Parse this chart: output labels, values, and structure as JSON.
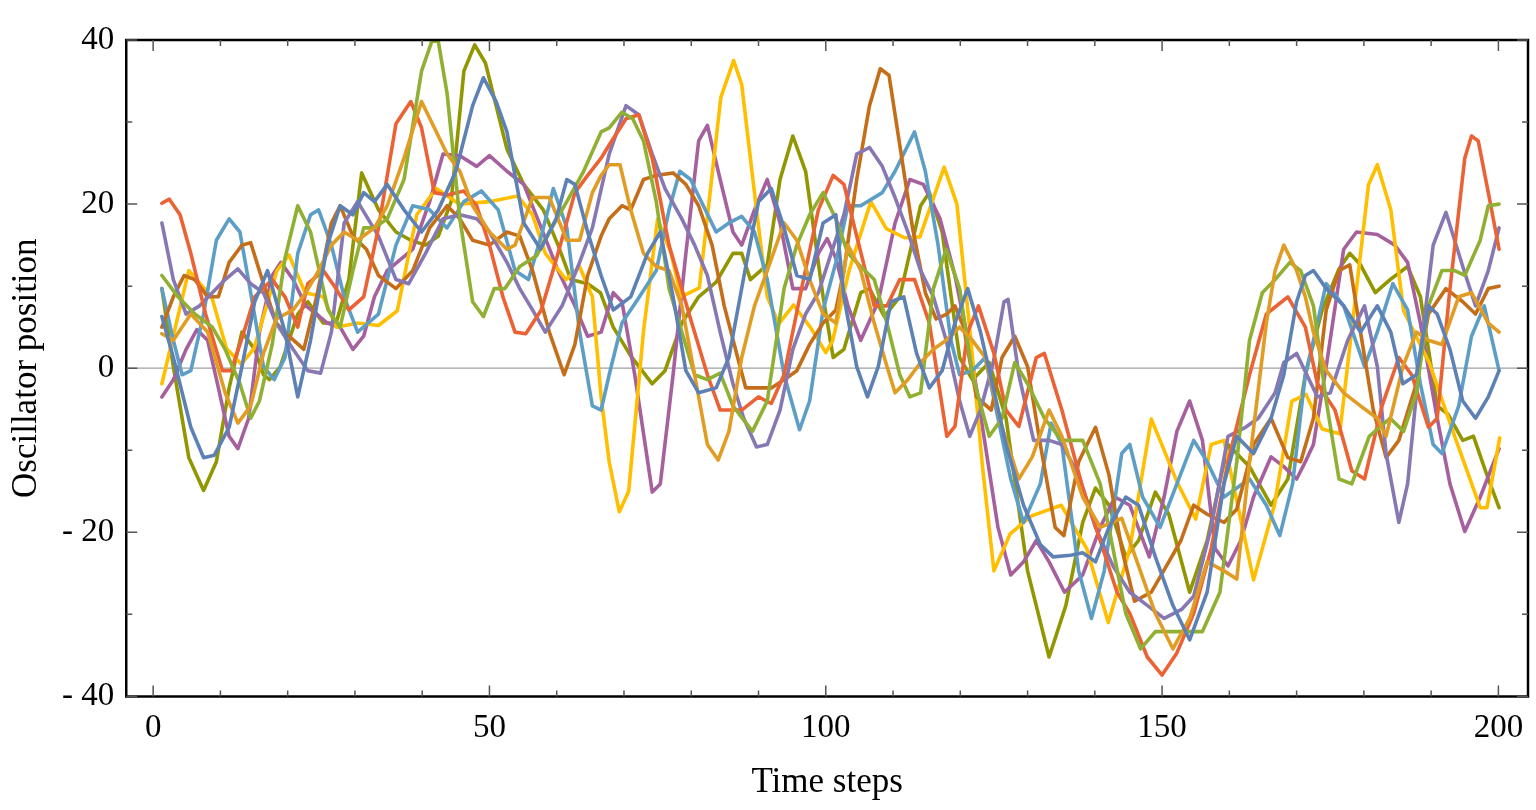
{
  "chart_data": {
    "type": "line",
    "xlabel": "Time steps",
    "ylabel": "Oscillator position",
    "xlim": [
      -4,
      204.4
    ],
    "ylim": [
      -40,
      40
    ],
    "xticks": [
      0,
      {
        "value": 10,
        "label": null
      },
      {
        "value": 20,
        "label": null
      },
      {
        "value": 30,
        "label": null
      },
      {
        "value": 40,
        "label": null
      },
      50,
      {
        "value": 60,
        "label": null
      },
      {
        "value": 70,
        "label": null
      },
      {
        "value": 80,
        "label": null
      },
      {
        "value": 90,
        "label": null
      },
      100,
      {
        "value": 110,
        "label": null
      },
      {
        "value": 120,
        "label": null
      },
      {
        "value": 130,
        "label": null
      },
      {
        "value": 140,
        "label": null
      },
      150,
      {
        "value": 160,
        "label": null
      },
      {
        "value": 170,
        "label": null
      },
      {
        "value": 180,
        "label": null
      },
      {
        "value": 190,
        "label": null
      },
      200
    ],
    "yticks": [
      {
        "value": -40,
        "label": "- 40"
      },
      {
        "value": -30,
        "label": null
      },
      {
        "value": -20,
        "label": "- 20"
      },
      {
        "value": -10,
        "label": null
      },
      0,
      {
        "value": 10,
        "label": null
      },
      20,
      {
        "value": 30,
        "label": null
      },
      40
    ],
    "grid": false,
    "marker": "none",
    "line_style": "solid",
    "ref_lines": [
      {
        "axis": "y",
        "value": 0,
        "color": "#a0a0a0"
      }
    ],
    "series": [
      {
        "color": "#5e81b5",
        "x": [
          1.3,
          3,
          5.6,
          7.5,
          9.1,
          11.3,
          13.2,
          15.1,
          17,
          19.6,
          21.5,
          23.4,
          25.9,
          27.8,
          29.7,
          31.3,
          32.9,
          34.8,
          37.3,
          39.9,
          42.4,
          45,
          47.5,
          49.1,
          51,
          52.6,
          55.1,
          57.6,
          59.9,
          61.5,
          62.7,
          64.6,
          66.6,
          68.4,
          71,
          73.5,
          75.4,
          77.3,
          79.2,
          81.1,
          83.7,
          85.6,
          88.1,
          90,
          91.9,
          93.8,
          95.7,
          97.6,
          99.6,
          101.5,
          102.7,
          104.6,
          106.2,
          107.8,
          109.7,
          111.6,
          113.5,
          115.4,
          117.3,
          119.2,
          121.1,
          123,
          124.9,
          126.8,
          129.4,
          131.9,
          133.8,
          136.4,
          138.2,
          140.1,
          142.1,
          144.6,
          146.5,
          149,
          151.6,
          154.1,
          156.7,
          159.2,
          161.1,
          163.6,
          166.2,
          168.1,
          170,
          171.3,
          172.5,
          174.4,
          177,
          179.5,
          182,
          184,
          185.8,
          187.8,
          189.6,
          190.9,
          192.8,
          194.7,
          196.6,
          198.5,
          200.1
        ],
        "values": [
          6.3,
          1.3,
          -7.2,
          -10.9,
          -10.6,
          -7.2,
          0.2,
          8.1,
          11.9,
          4.4,
          -3.5,
          3.4,
          15,
          19.8,
          18.7,
          21.4,
          20.3,
          22.4,
          19.3,
          16.6,
          19.3,
          24,
          32,
          35.4,
          32.5,
          28.8,
          17.7,
          14.5,
          18.2,
          23,
          22.4,
          16.6,
          11.3,
          7.1,
          8.7,
          14,
          16.6,
          8.7,
          -0.3,
          -3,
          -2.4,
          1.3,
          12.4,
          20.3,
          21.9,
          17.1,
          11.3,
          10.8,
          17.7,
          18.7,
          8.7,
          0.2,
          -3.5,
          0.2,
          8.1,
          8.7,
          1.8,
          -2.4,
          -0.3,
          5.5,
          9.7,
          4.4,
          -2.4,
          -9.3,
          -16.7,
          -21.5,
          -23,
          -22.8,
          -22.5,
          -23.6,
          -19.4,
          -15.7,
          -16.7,
          -23,
          -28.9,
          -33.1,
          -27.3,
          -14.1,
          -8.3,
          -10.4,
          -6.1,
          -0.8,
          8.1,
          11.3,
          11.9,
          9.7,
          7.6,
          4.4,
          7.6,
          4.4,
          -1.9,
          -0.8,
          7.6,
          6.6,
          2.3,
          -4,
          -6.1,
          -3.5,
          -0.3
        ]
      },
      {
        "color": "#e19c24",
        "x": [
          1.3,
          3,
          5.6,
          8.1,
          10.7,
          12.6,
          14.5,
          16.4,
          18.3,
          20.8,
          22.7,
          24.6,
          26.5,
          28.4,
          30.4,
          32.9,
          34.8,
          37.3,
          39.9,
          41.8,
          43.7,
          45.6,
          47.5,
          50,
          52.6,
          53.8,
          56.4,
          58.9,
          61.5,
          63.4,
          65.3,
          66.6,
          67.8,
          69.4,
          71,
          72.9,
          74.8,
          76.7,
          78.6,
          80.5,
          82.4,
          84,
          85.6,
          87.5,
          89.4,
          91.3,
          93.8,
          95.7,
          97.6,
          99.6,
          101.5,
          103.3,
          105.2,
          107.2,
          109.1,
          110.3,
          112.2,
          114.1,
          116,
          117.9,
          119.9,
          121.8,
          123.7,
          126.2,
          128.7,
          130.7,
          133.2,
          135.1,
          138.2,
          140.8,
          144,
          146.5,
          149,
          151.6,
          154.1,
          156.7,
          159.2,
          161.1,
          163,
          165.5,
          166.8,
          168.1,
          170,
          171.3,
          172.5,
          174.4,
          177,
          179.5,
          182,
          183.3,
          185.8,
          187.8,
          189.6,
          191.6,
          194.1,
          196,
          198.5,
          200.1
        ],
        "values": [
          4.2,
          3.4,
          6.6,
          4.4,
          -3,
          -6.7,
          -4.6,
          1.8,
          6,
          7.1,
          9.2,
          11.9,
          15,
          16.6,
          15.6,
          17.1,
          19.8,
          25.6,
          32.5,
          29.3,
          26.1,
          24,
          19.8,
          16.6,
          14.5,
          15,
          20.8,
          20.8,
          15.6,
          15.6,
          21.4,
          23.5,
          24.8,
          24.8,
          19.3,
          14,
          12.4,
          11.9,
          7.6,
          -0.8,
          -9.3,
          -11.2,
          -7.7,
          1.3,
          7.6,
          11.9,
          17.7,
          15.6,
          10.8,
          6.6,
          5.5,
          15,
          11.9,
          5.5,
          0.2,
          -3,
          -1.4,
          0.7,
          2.3,
          3.4,
          5,
          3.4,
          1.3,
          -7.2,
          -13.5,
          -10.8,
          -5.1,
          -8.3,
          -15.7,
          -19.4,
          -18.3,
          -24.1,
          -29.9,
          -34.2,
          -30.5,
          -23.6,
          -24.7,
          -25.7,
          -11.4,
          5.5,
          11.9,
          15,
          11.9,
          8.7,
          4.4,
          -0.3,
          -3,
          -4.6,
          -6.1,
          -8.3,
          0.2,
          4.4,
          3.4,
          2.9,
          8.7,
          9.2,
          5.5,
          4.4
        ]
      },
      {
        "color": "#8fb032",
        "x": [
          1.3,
          3.7,
          6.2,
          8.8,
          10.7,
          12.9,
          14.5,
          15.8,
          17.7,
          19.6,
          21.5,
          23.4,
          26,
          27.8,
          29.7,
          31.3,
          32.9,
          34.8,
          37.3,
          39.9,
          41.5,
          42.4,
          43.7,
          45.6,
          47.5,
          49.1,
          50.7,
          52.3,
          54.5,
          57,
          58.9,
          61.5,
          64,
          66.6,
          67.8,
          69.7,
          71.3,
          72.9,
          74.8,
          76.7,
          78.6,
          80.5,
          82.4,
          84.3,
          86.2,
          89.1,
          91.3,
          93.8,
          95.7,
          97.6,
          99.6,
          101.5,
          103.3,
          105.2,
          107.2,
          109.1,
          111,
          112.5,
          114.1,
          116,
          117.9,
          119.9,
          121.8,
          124.3,
          126.2,
          128.1,
          130,
          132.5,
          135.1,
          138.2,
          140.8,
          142.7,
          144.6,
          146.8,
          149,
          152.2,
          156,
          158.6,
          161.1,
          163,
          164.9,
          166.8,
          169,
          170.6,
          172.5,
          174.4,
          176.3,
          178.2,
          180.8,
          183.9,
          185.9,
          187.8,
          189.6,
          191.6,
          193.5,
          195,
          197.3,
          198.5,
          200.1
        ],
        "values": [
          11.3,
          8.7,
          6.6,
          5,
          2.3,
          -1.9,
          -6.1,
          -4,
          2.9,
          13.4,
          19.8,
          16.6,
          7.1,
          5,
          11.9,
          17.1,
          17.1,
          18.2,
          23,
          36.2,
          40,
          39.8,
          33.5,
          18.2,
          8.1,
          6.3,
          9.7,
          9.7,
          12.4,
          13.7,
          16.6,
          20.3,
          24,
          28.8,
          29.3,
          31.2,
          30.4,
          27.7,
          20.3,
          9.7,
          4.4,
          -0.8,
          -1.4,
          -0.6,
          -4.6,
          -7.7,
          -4,
          9.7,
          15,
          18.7,
          21.4,
          18.2,
          14,
          12.4,
          10.8,
          5.5,
          -0.8,
          -3.5,
          -3,
          9.7,
          14.5,
          9.7,
          -0.8,
          -8.3,
          -6.1,
          0.7,
          -1.9,
          -6.1,
          -8.8,
          -8.8,
          -14.1,
          -22,
          -29.9,
          -34.2,
          -32.1,
          -32.1,
          -32.1,
          -27.3,
          -11.4,
          3.4,
          9.2,
          10.8,
          12.9,
          11.9,
          7.6,
          -4,
          -13.5,
          -14.1,
          -8.3,
          -6.1,
          -7.7,
          -3,
          7.6,
          11.9,
          11.9,
          11.3,
          15.6,
          19.8,
          20
        ]
      },
      {
        "color": "#eb6235",
        "x": [
          1.3,
          2.4,
          4,
          5.6,
          7.8,
          10.3,
          11.6,
          13.5,
          15.1,
          17.7,
          19.6,
          21.5,
          23,
          25.3,
          27.2,
          29.1,
          31.3,
          33.5,
          36.1,
          38.3,
          39.9,
          41.8,
          43.7,
          46.2,
          48.1,
          50,
          52,
          53.8,
          55.4,
          57.7,
          60.2,
          62.7,
          64.6,
          66.6,
          67.8,
          70.3,
          72.2,
          74.2,
          76.7,
          79.9,
          82.4,
          84.3,
          87.5,
          90,
          91.9,
          93.8,
          96.4,
          98.9,
          101.1,
          102.7,
          104.6,
          107.2,
          109.1,
          111,
          113.2,
          115.4,
          118,
          119.2,
          121.1,
          122.7,
          125,
          126.8,
          128.7,
          131.3,
          132.5,
          135.1,
          138.2,
          140.8,
          143.3,
          145.2,
          147.8,
          150,
          152.2,
          154.7,
          157.3,
          159.8,
          163,
          165.5,
          168.7,
          171.3,
          173.1,
          175.7,
          178.2,
          180.1,
          182.7,
          185.2,
          187.1,
          189.6,
          190.9,
          192.8,
          195,
          196,
          197,
          198.5,
          200.1
        ],
        "values": [
          20.1,
          20.6,
          18.7,
          14,
          6.6,
          -0.3,
          -0.3,
          4.4,
          8.7,
          10.8,
          8.7,
          5,
          10.3,
          11.9,
          9.7,
          7.1,
          8.7,
          17.1,
          29.8,
          32.5,
          29.3,
          21.4,
          21.1,
          21.6,
          19.8,
          15,
          8.7,
          4.4,
          4.2,
          7.1,
          14,
          21.4,
          23.5,
          25.6,
          27.2,
          30.4,
          30.9,
          25.6,
          15,
          6,
          -0.8,
          -5.1,
          -5.1,
          -3.5,
          -4.3,
          -0.8,
          9.7,
          19.3,
          23.5,
          22.4,
          16.1,
          7.6,
          7.6,
          10.8,
          10.8,
          5.5,
          -8.3,
          -7.1,
          4.4,
          7.6,
          1.8,
          -5.1,
          -7.1,
          1.3,
          1.8,
          -5.1,
          -14.6,
          -21,
          -27.3,
          -29.9,
          -35.2,
          -37.4,
          -34.7,
          -29.9,
          -22,
          -11.4,
          -0.8,
          6.6,
          8.7,
          5,
          -1.9,
          -5.1,
          -12.5,
          -13.5,
          -4.6,
          1.3,
          -0.8,
          -7.2,
          -6.1,
          9.7,
          25.6,
          28.3,
          27.7,
          21.4,
          14.5
        ]
      },
      {
        "color": "#8778b3",
        "x": [
          1.3,
          3,
          4.9,
          6.9,
          8.8,
          10.7,
          12.6,
          14.5,
          16.4,
          18.3,
          20.8,
          23,
          24.9,
          26.5,
          28.4,
          30.4,
          33.5,
          36.1,
          38,
          40.5,
          43.1,
          45.6,
          48.1,
          50,
          52.6,
          54.5,
          56.4,
          58.3,
          60.8,
          63.4,
          65.3,
          67.8,
          70.3,
          72.2,
          74.2,
          76.1,
          78.6,
          80.5,
          82.4,
          84.3,
          86.2,
          87.8,
          89.7,
          91.3,
          93.2,
          95.1,
          97,
          98.9,
          100.8,
          102.7,
          104.6,
          106.5,
          108.4,
          110.3,
          112.2,
          114.1,
          116,
          117.9,
          119.9,
          121.4,
          123,
          124.9,
          126.5,
          127.1,
          128.7,
          130.9,
          133.2,
          135.1,
          137.6,
          140.1,
          142.7,
          145.2,
          147.8,
          150.3,
          152.9,
          154.7,
          157.3,
          159.8,
          162.4,
          164.3,
          166.8,
          168.1,
          170,
          173.1,
          175,
          177.6,
          180.1,
          182,
          183.3,
          185.2,
          186.5,
          188.4,
          190.3,
          192.2,
          194.7,
          196.6,
          198.5,
          200.1
        ],
        "values": [
          17.7,
          10.8,
          6.6,
          7.6,
          9.2,
          10.8,
          12.1,
          10.3,
          9.2,
          5.5,
          2.3,
          -0.3,
          -0.6,
          4.4,
          17.7,
          20.3,
          16.1,
          10.8,
          10.3,
          14,
          18.2,
          18.7,
          18.2,
          16.6,
          12.9,
          9.7,
          7.1,
          4.4,
          7.6,
          12.9,
          17.1,
          26.1,
          32,
          30.9,
          26.1,
          21.9,
          18.2,
          15,
          11.3,
          4.4,
          -1.9,
          -6.1,
          -9.6,
          -9.3,
          -5.1,
          2.3,
          6.6,
          9.2,
          14,
          18.7,
          26.1,
          26.9,
          24.6,
          20.8,
          16.6,
          11.9,
          8.7,
          3.4,
          -4,
          -8.3,
          -5.1,
          0.7,
          8.1,
          8.4,
          -0.8,
          -8.8,
          -8.8,
          -9.3,
          -13,
          -19.4,
          -24.1,
          -27.3,
          -28.9,
          -30.5,
          -29.4,
          -27.8,
          -19.4,
          -8.3,
          -7.2,
          -6.1,
          -3,
          0.7,
          1.8,
          -3.5,
          -3,
          3.4,
          7.6,
          0.2,
          -10.4,
          -18.8,
          -14.1,
          1.8,
          15,
          19,
          12.4,
          7.6,
          11.9,
          17.1
        ]
      },
      {
        "color": "#c56e1a",
        "x": [
          1.3,
          3,
          4.6,
          6.2,
          8.1,
          9.7,
          11.3,
          13.2,
          14.5,
          16.4,
          18.3,
          20.2,
          22.4,
          24.3,
          26.5,
          27.8,
          29.7,
          31.7,
          33.5,
          36.1,
          38.6,
          41.1,
          43.7,
          45.6,
          47.5,
          50,
          52.6,
          54.5,
          56.4,
          58.9,
          61.1,
          62.7,
          64.6,
          66.6,
          67.8,
          69.7,
          71,
          72.9,
          74.8,
          77.3,
          79.2,
          81.1,
          83.1,
          84.9,
          86.9,
          88.1,
          90,
          91.9,
          93.8,
          95.7,
          97.6,
          99.6,
          101.5,
          102.7,
          104.6,
          106.5,
          108.1,
          109.4,
          111,
          112.9,
          114.8,
          116.4,
          118,
          119.2,
          120.5,
          122.4,
          124.6,
          126.2,
          128.1,
          130,
          131.9,
          134.1,
          135.4,
          137.6,
          140.1,
          142.1,
          144,
          145.9,
          148.4,
          151,
          152.8,
          154.7,
          156.7,
          159.2,
          161.1,
          163.6,
          166.2,
          168.7,
          170.6,
          172.5,
          174.4,
          176.3,
          177.9,
          179.5,
          181.4,
          183.3,
          185.2,
          187.8,
          189.6,
          192.2,
          194.7,
          196.6,
          198.5,
          200.1
        ],
        "values": [
          5,
          8.7,
          11.3,
          10.8,
          8.7,
          8.7,
          12.9,
          15,
          15.3,
          10.3,
          5.5,
          3.9,
          2.3,
          8.7,
          17.7,
          19.8,
          16.1,
          14.5,
          11.3,
          9.7,
          11.9,
          17.1,
          19.8,
          18.2,
          15.6,
          15,
          16.6,
          16.1,
          11.9,
          4.4,
          -0.8,
          2.9,
          11.3,
          16.1,
          18.2,
          19.8,
          19.3,
          23,
          23.5,
          23.8,
          22.4,
          19.8,
          15,
          7.6,
          1.3,
          -2.4,
          -2.4,
          -2.4,
          -1.4,
          -0.3,
          2.9,
          5.5,
          7.1,
          11.9,
          23,
          32,
          36.5,
          35.7,
          27.2,
          17.1,
          9.2,
          6,
          6.6,
          7.6,
          5,
          -3.5,
          -5.1,
          1.3,
          3.9,
          0.2,
          -9.3,
          -19.4,
          -20.4,
          -11.4,
          -7.2,
          -13,
          -22,
          -28.4,
          -27.3,
          -23.6,
          -21,
          -16.7,
          -17.8,
          -18.8,
          -17.2,
          -9.3,
          -6.1,
          -10.9,
          -11.4,
          -6.1,
          7.1,
          11.9,
          12.6,
          4.4,
          -5.1,
          -10.9,
          -8.8,
          -1.9,
          6.6,
          9.7,
          8.1,
          6.6,
          9.7,
          10
        ]
      },
      {
        "color": "#5d9ec7",
        "x": [
          1.3,
          3,
          4.3,
          5.6,
          7.5,
          9.4,
          11.3,
          12.9,
          14.5,
          16.4,
          18,
          19.6,
          21.5,
          23.4,
          24.6,
          26.5,
          28.4,
          30.4,
          33.5,
          36.1,
          38.6,
          41.1,
          43.7,
          46.2,
          48.8,
          51.3,
          53.8,
          55.8,
          57.7,
          59.5,
          61.5,
          63.4,
          65.3,
          66.6,
          67.8,
          69.7,
          72.3,
          74.8,
          76.7,
          78.3,
          79.9,
          81.8,
          83.7,
          85.6,
          87.5,
          89.4,
          91.3,
          93.8,
          96.1,
          97.6,
          99.6,
          101.5,
          103.3,
          105.2,
          108.4,
          110.3,
          113.2,
          114.8,
          116.7,
          118.6,
          119.9,
          121.8,
          123.7,
          125.6,
          127.5,
          129.4,
          131.9,
          133.5,
          135.1,
          137.6,
          139.5,
          141.4,
          144,
          145.2,
          147.1,
          149.7,
          152.2,
          154.7,
          156.7,
          159.2,
          163,
          165.5,
          167.5,
          169.4,
          171.3,
          172.5,
          174.4,
          177,
          180.1,
          182,
          184.3,
          186.5,
          188.4,
          190.3,
          191.6,
          194.1,
          196,
          197.9,
          200.1
        ],
        "values": [
          9.7,
          3.4,
          -0.8,
          -0.3,
          6.6,
          15.6,
          18.2,
          16.6,
          9.2,
          0.2,
          -1.4,
          1.3,
          14,
          18.7,
          19.3,
          15,
          8.7,
          4.4,
          6.6,
          15,
          19.8,
          19.3,
          17.1,
          20.3,
          21.6,
          19.3,
          11.9,
          10.8,
          16.1,
          21.9,
          17.1,
          4.4,
          -4.6,
          -5.1,
          -0.8,
          5.5,
          8.7,
          11.9,
          19.3,
          24,
          23,
          19.8,
          16.6,
          17.7,
          18.5,
          16.6,
          10.8,
          -0.8,
          -7.5,
          -4,
          7.1,
          12.9,
          19.8,
          19.8,
          21.4,
          24,
          28.8,
          24,
          15,
          3.4,
          -0.8,
          -0.3,
          1.3,
          -6.1,
          -13.5,
          -18.8,
          -14.1,
          -6.7,
          -9.3,
          -24.7,
          -30.5,
          -24.7,
          -10.4,
          -9.3,
          -15.7,
          -19.4,
          -14.1,
          -8.8,
          -11.4,
          -15.7,
          -13.5,
          -16.7,
          -20.4,
          -14.1,
          -0.8,
          3.4,
          10.3,
          7.6,
          0.2,
          4.4,
          10.3,
          7.1,
          -1.9,
          -9.3,
          -10.4,
          -4.6,
          3.9,
          7.6,
          -0.3
        ]
      },
      {
        "color": "#ffbf00",
        "x": [
          1.3,
          5.3,
          8.7,
          10.9,
          13.1,
          15,
          18.4,
          20.2,
          22.6,
          25.3,
          27.2,
          30.4,
          33.5,
          36.3,
          39.2,
          42.1,
          45.5,
          50,
          54.2,
          56.4,
          58.3,
          61.4,
          63.4,
          65.3,
          66.6,
          67.8,
          69.3,
          70.7,
          72.9,
          75,
          77,
          78.5,
          81.2,
          84.4,
          86.3,
          87.5,
          89.7,
          91.3,
          93,
          95.2,
          97.7,
          100,
          101,
          103.5,
          106.7,
          109,
          111.7,
          114,
          117.6,
          119.5,
          121.5,
          123.3,
          125,
          127.4,
          130.6,
          135,
          138.8,
          142,
          145.2,
          148.4,
          152.3,
          155,
          157.3,
          159.2,
          163.6,
          166.7,
          169.3,
          171.4,
          173.8,
          176.4,
          180.7,
          182,
          184,
          185.9,
          189.7,
          193.5,
          197.3,
          198.3,
          200.2
        ],
        "values": [
          -1.9,
          11.9,
          8.7,
          2.4,
          0.5,
          2.4,
          11.9,
          13.8,
          9.2,
          8.7,
          5,
          5.5,
          5.2,
          7,
          18.7,
          21.9,
          20,
          20.3,
          21,
          18.7,
          14,
          10.8,
          12.4,
          8.7,
          -3.5,
          -11.4,
          -17.5,
          -15,
          4.5,
          18.2,
          14,
          8.7,
          9.8,
          33,
          37.5,
          34.6,
          19.3,
          8.7,
          5.4,
          7.7,
          5,
          1.9,
          3.3,
          12,
          20.3,
          17,
          15.9,
          16,
          24.5,
          20,
          4,
          -12,
          -24.7,
          -20.2,
          -18,
          -16.7,
          -22,
          -31,
          -22,
          -6.2,
          -14,
          -18.4,
          -9.3,
          -8.8,
          -25.8,
          -16.7,
          -4,
          -3.2,
          -7.4,
          -8,
          22.4,
          24.8,
          19.3,
          7,
          0.7,
          -8.3,
          -17,
          -17,
          -8.5
        ]
      },
      {
        "color": "#a5609d",
        "x": [
          1.3,
          3,
          4.9,
          6.5,
          8.1,
          9.7,
          11.3,
          12.6,
          14.2,
          15.8,
          17.7,
          19,
          20.8,
          22.7,
          24.3,
          25.9,
          27.8,
          29.7,
          31.3,
          32.9,
          34.8,
          36.7,
          38.6,
          41.1,
          43.1,
          45.6,
          48.1,
          50,
          52.6,
          55.1,
          57.7,
          60.2,
          62.7,
          64.6,
          66.6,
          68.4,
          69.7,
          71.6,
          74.2,
          75.4,
          77.3,
          79.2,
          81.1,
          82.4,
          84.3,
          86.2,
          87.5,
          89.4,
          91.3,
          93.2,
          95.1,
          97,
          98.9,
          100.2,
          101.5,
          103.3,
          105.2,
          107.8,
          110.3,
          112.5,
          114.5,
          117,
          119.2,
          121.8,
          123.7,
          125.6,
          127.5,
          129.4,
          131.3,
          133.2,
          135.5,
          138.2,
          140.8,
          143,
          145.2,
          148.1,
          150.3,
          152.2,
          154.1,
          156,
          157.9,
          159.8,
          161.7,
          163.6,
          166.2,
          168.1,
          170,
          171.3,
          172.5,
          174.4,
          177,
          178.9,
          182,
          184.6,
          186.5,
          188.4,
          190.9,
          192.8,
          195,
          197.3,
          200.1
        ],
        "values": [
          -3.5,
          -1.4,
          2.3,
          4.7,
          3.4,
          -2.4,
          -8.3,
          -9.8,
          -6.1,
          4.4,
          11.3,
          12.9,
          10.8,
          7.6,
          6.6,
          5.5,
          5,
          2.3,
          3.9,
          8.7,
          11.9,
          13.2,
          14.5,
          20.3,
          26.1,
          25.9,
          24.6,
          25.9,
          24,
          22.4,
          17.1,
          11.9,
          7.6,
          3.9,
          4.4,
          9.2,
          8.1,
          -0.8,
          -15.1,
          -14.1,
          -0.8,
          14,
          27.7,
          29.6,
          23,
          16.6,
          15,
          19.3,
          23,
          17.7,
          9.7,
          9.7,
          14,
          15.8,
          13.4,
          7.6,
          3.4,
          8.1,
          17.7,
          23,
          22.4,
          18.2,
          11.3,
          0.7,
          -9.3,
          -19.4,
          -25.2,
          -23.6,
          -21,
          -23.6,
          -27.3,
          -25.2,
          -19.4,
          -15.7,
          -16.7,
          -23,
          -15.7,
          -7.7,
          -4,
          -8.8,
          -22,
          -24.1,
          -21,
          -15.7,
          -10.8,
          -12,
          -13.5,
          -11.4,
          -9.3,
          0.2,
          14.5,
          16.6,
          16.3,
          15,
          12.9,
          5.5,
          -6.1,
          -14.1,
          -19.9,
          -15.7,
          -9.8
        ]
      },
      {
        "color": "#929600",
        "x": [
          1.3,
          3,
          5.3,
          7.5,
          9.4,
          11.3,
          13.2,
          15.1,
          16.4,
          17.3,
          18.9,
          21.5,
          23,
          25.3,
          27.2,
          29.1,
          31,
          33.5,
          36.1,
          38.3,
          40.5,
          42.4,
          44.3,
          46.2,
          47.8,
          49.4,
          52.6,
          55.1,
          58,
          60.2,
          62.1,
          64.6,
          66.5,
          68.4,
          71,
          74.2,
          76.1,
          78.6,
          81.1,
          83.7,
          86.2,
          87.5,
          88.8,
          91.3,
          93.2,
          95.1,
          97,
          99.6,
          101.1,
          102.7,
          105.2,
          106.5,
          108.7,
          111,
          114.1,
          115.4,
          117.3,
          119.9,
          121.8,
          124.3,
          126.8,
          130,
          133.2,
          135.7,
          138.2,
          140.1,
          142.1,
          144.6,
          146.5,
          149,
          151,
          154.1,
          156.7,
          159.8,
          163,
          166.2,
          168.7,
          171.3,
          173.8,
          176.3,
          177.9,
          179.5,
          181.7,
          183.9,
          186.5,
          188.4,
          190.9,
          192.5,
          194.7,
          196.3,
          198.5,
          200.1
        ],
        "values": [
          9.7,
          0.2,
          -10.9,
          -14.9,
          -11.4,
          -2.4,
          4.4,
          2.3,
          -0.8,
          -1.4,
          0.2,
          6.6,
          8.1,
          5.5,
          5.5,
          10.8,
          23.8,
          19.3,
          16.6,
          15.6,
          15,
          16.1,
          20.3,
          36.2,
          39.4,
          37.2,
          26.7,
          22.4,
          19.3,
          15,
          10.8,
          10.3,
          9.2,
          5,
          1.5,
          -1.9,
          -0.3,
          5.5,
          8.7,
          10.5,
          14,
          14,
          10.8,
          12.6,
          23,
          28.3,
          24,
          8.7,
          1.3,
          2.3,
          9.2,
          9.7,
          6.3,
          8.7,
          19.8,
          21.4,
          16.6,
          1.3,
          -1.4,
          0.7,
          -6.1,
          -24.7,
          -35.2,
          -28.9,
          -18.8,
          -14.6,
          -16.7,
          -23,
          -21,
          -15.1,
          -17.8,
          -27.3,
          -21,
          -9.3,
          -12,
          -16.7,
          -13.5,
          -0.8,
          7.1,
          12.1,
          14,
          12.6,
          9.2,
          10.8,
          12.4,
          8.7,
          -4.6,
          -5.6,
          -8.8,
          -8.3,
          -13.5,
          -17
        ]
      }
    ]
  }
}
